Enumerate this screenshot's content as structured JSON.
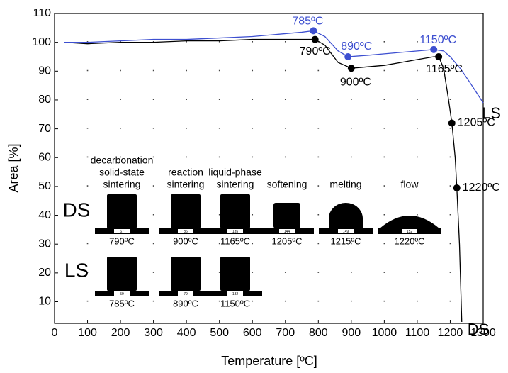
{
  "chart_data": {
    "type": "line",
    "x_label": "Temperature [ºC]",
    "y_label": "Area [%]",
    "xlim": [
      0,
      1300
    ],
    "xticks": [
      0,
      100,
      200,
      300,
      400,
      500,
      600,
      700,
      800,
      900,
      1000,
      1100,
      1200,
      1300
    ],
    "ylim": [
      2.5,
      110
    ],
    "yticks": [
      10,
      20,
      30,
      40,
      50,
      60,
      70,
      80,
      90,
      100,
      110
    ],
    "grid": true,
    "series": [
      {
        "name": "DS",
        "color": "#000000",
        "x": [
          30,
          100,
          200,
          300,
          400,
          500,
          600,
          700,
          760,
          790,
          820,
          860,
          900,
          950,
          1000,
          1050,
          1100,
          1150,
          1165,
          1180,
          1195,
          1205,
          1215,
          1220,
          1228,
          1235
        ],
        "values": [
          100,
          99.5,
          100,
          100,
          100.5,
          100.5,
          101,
          101,
          101,
          101,
          99,
          93,
          91,
          91.5,
          92,
          93,
          94,
          95,
          95,
          91,
          80,
          72,
          60,
          49.5,
          30,
          3
        ]
      },
      {
        "name": "LS",
        "color": "#3d4fd0",
        "x": [
          30,
          100,
          200,
          300,
          400,
          500,
          600,
          700,
          750,
          785,
          820,
          860,
          890,
          950,
          1000,
          1050,
          1100,
          1150,
          1180,
          1200,
          1230,
          1260,
          1300
        ],
        "values": [
          100,
          100,
          100.5,
          101,
          101,
          101.5,
          102,
          103,
          103.5,
          104,
          102,
          97,
          95,
          95.5,
          96,
          96.5,
          97,
          97.5,
          97,
          95,
          91,
          86,
          79
        ]
      }
    ],
    "annotations": [
      {
        "series": 0,
        "x": 790,
        "y": 101,
        "label": "790ºC"
      },
      {
        "series": 0,
        "x": 900,
        "y": 91,
        "label": "900ºC"
      },
      {
        "series": 0,
        "x": 1165,
        "y": 95,
        "label": "1165ºC"
      },
      {
        "series": 0,
        "x": 1205,
        "y": 72,
        "label": "1205ºC"
      },
      {
        "series": 0,
        "x": 1220,
        "y": 49.5,
        "label": "1220ºC"
      },
      {
        "series": 1,
        "x": 785,
        "y": 104,
        "label": "785ºC"
      },
      {
        "series": 1,
        "x": 890,
        "y": 95,
        "label": "890ºC"
      },
      {
        "series": 1,
        "x": 1150,
        "y": 97.5,
        "label": "1150ºC"
      }
    ]
  },
  "inset": {
    "stages": [
      [
        "decarbonation",
        "solid-state",
        "sintering"
      ],
      [
        "reaction",
        "sintering"
      ],
      [
        "liquid-phase",
        "sintering"
      ],
      [
        "softening"
      ],
      [
        "melting"
      ],
      [
        "flow"
      ]
    ],
    "ds_label": "DS",
    "ls_label": "LS",
    "ds_numbers": [
      "67",
      "86",
      "135",
      "144",
      "149",
      "152"
    ],
    "ds_temps": [
      "790ºC",
      "900ºC",
      "1165ºC",
      "1205ºC",
      "1215ºC",
      "1220ºC"
    ],
    "ls_numbers": [
      "59",
      "79",
      "132"
    ],
    "ls_temps": [
      "785ºC",
      "890ºC",
      "1150ºC"
    ]
  }
}
